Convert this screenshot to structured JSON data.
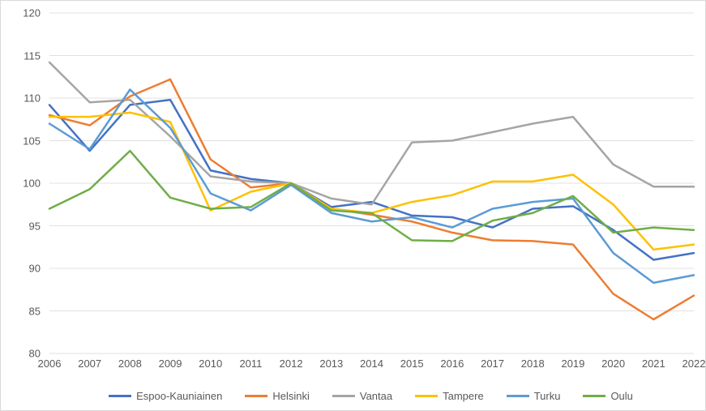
{
  "chart": {
    "type": "line",
    "background_color": "#ffffff",
    "border_color": "#d9d9d9",
    "grid_color": "#e0e0e0",
    "label_color": "#595959",
    "label_fontsize": 13,
    "line_width": 2.5,
    "x": {
      "categories": [
        "2006",
        "2007",
        "2008",
        "2009",
        "2010",
        "2011",
        "2012",
        "2013",
        "2014",
        "2015",
        "2016",
        "2017",
        "2018",
        "2019",
        "2020",
        "2021",
        "2022"
      ]
    },
    "y": {
      "min": 80,
      "max": 120,
      "tick_step": 5,
      "ticks": [
        80,
        85,
        90,
        95,
        100,
        105,
        110,
        115,
        120
      ]
    },
    "series": [
      {
        "name": "Espoo-Kauniainen",
        "color": "#4472c4",
        "values": [
          109.2,
          103.8,
          109.2,
          109.8,
          101.5,
          100.5,
          100.0,
          97.2,
          97.8,
          96.2,
          96.0,
          94.8,
          97.0,
          97.3,
          94.5,
          91.0,
          91.8
        ]
      },
      {
        "name": "Helsinki",
        "color": "#ed7d31",
        "values": [
          108.0,
          106.8,
          110.2,
          112.2,
          102.8,
          99.5,
          100.0,
          97.0,
          96.3,
          95.5,
          94.2,
          93.3,
          93.2,
          92.8,
          87.0,
          84.0,
          86.8
        ]
      },
      {
        "name": "Vantaa",
        "color": "#a5a5a5",
        "values": [
          114.2,
          109.5,
          109.8,
          105.5,
          100.8,
          100.2,
          100.0,
          98.2,
          97.5,
          104.8,
          105.0,
          106.0,
          107.0,
          107.8,
          102.2,
          99.6,
          99.6
        ]
      },
      {
        "name": "Tampere",
        "color": "#ffc000",
        "values": [
          107.8,
          107.8,
          108.3,
          107.2,
          96.8,
          99.0,
          100.0,
          97.0,
          96.5,
          97.8,
          98.6,
          100.2,
          100.2,
          101.0,
          97.5,
          92.2,
          92.8
        ]
      },
      {
        "name": "Turku",
        "color": "#5b9bd5",
        "values": [
          107.0,
          104.0,
          111.0,
          106.5,
          98.8,
          96.8,
          99.8,
          96.5,
          95.5,
          96.0,
          94.8,
          97.0,
          97.8,
          98.2,
          91.8,
          88.3,
          89.2
        ]
      },
      {
        "name": "Oulu",
        "color": "#70ad47",
        "values": [
          97.0,
          99.3,
          103.8,
          98.3,
          97.0,
          97.2,
          100.0,
          96.8,
          96.5,
          93.3,
          93.2,
          95.6,
          96.5,
          98.5,
          94.2,
          94.8,
          94.5
        ]
      }
    ]
  }
}
